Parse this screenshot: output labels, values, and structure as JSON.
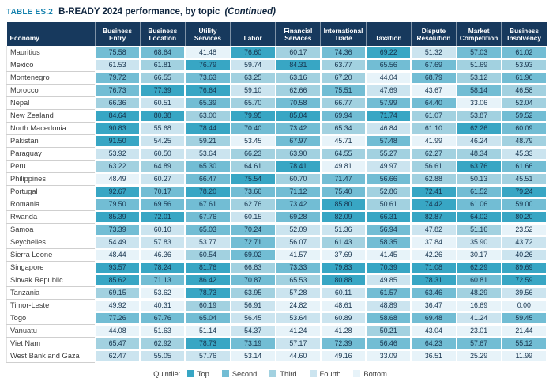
{
  "title": {
    "label": "TABLE ES.2",
    "text": "B-READY 2024 performance, by topic",
    "continued": "(Continued)"
  },
  "colors": {
    "accent": "#1581ad",
    "navytext": "#10263f",
    "headerbg": "#17395d",
    "top": "#38a6c4",
    "second": "#72bdd4",
    "third": "#a2d1e0",
    "fourth": "#cbe4ef",
    "bottom": "#e7f3f9"
  },
  "table": {
    "columns": [
      "Economy",
      "Business Entry",
      "Business Location",
      "Utility Services",
      "Labor",
      "Financial Services",
      "International Trade",
      "Taxation",
      "Dispute Resolution",
      "Market Competition",
      "Business Insolvency"
    ],
    "rows": [
      {
        "economy": "Mauritius",
        "values": [
          75.58,
          68.64,
          41.48,
          76.6,
          60.17,
          74.36,
          69.22,
          51.32,
          57.03,
          61.02
        ],
        "quintiles": [
          2,
          2,
          5,
          1,
          3,
          2,
          1,
          4,
          2,
          2
        ]
      },
      {
        "economy": "Mexico",
        "values": [
          61.53,
          61.81,
          76.79,
          59.74,
          84.31,
          63.77,
          65.56,
          67.69,
          51.69,
          53.93
        ],
        "quintiles": [
          4,
          3,
          1,
          4,
          1,
          3,
          2,
          2,
          3,
          3
        ]
      },
      {
        "economy": "Montenegro",
        "values": [
          79.72,
          66.55,
          73.63,
          63.25,
          63.16,
          67.2,
          44.04,
          68.79,
          53.12,
          61.96
        ],
        "quintiles": [
          2,
          3,
          2,
          3,
          3,
          3,
          5,
          2,
          3,
          2
        ]
      },
      {
        "economy": "Morocco",
        "values": [
          76.73,
          77.39,
          76.64,
          59.1,
          62.66,
          75.51,
          47.69,
          43.67,
          58.14,
          46.58
        ],
        "quintiles": [
          2,
          1,
          1,
          4,
          3,
          2,
          4,
          5,
          2,
          3
        ]
      },
      {
        "economy": "Nepal",
        "values": [
          66.36,
          60.51,
          65.39,
          65.7,
          70.58,
          66.77,
          57.99,
          64.4,
          33.06,
          52.04
        ],
        "quintiles": [
          3,
          4,
          2,
          3,
          2,
          3,
          2,
          2,
          5,
          3
        ]
      },
      {
        "economy": "New Zealand",
        "values": [
          84.64,
          80.38,
          63.0,
          79.95,
          85.04,
          69.94,
          71.74,
          61.07,
          53.87,
          59.52
        ],
        "quintiles": [
          1,
          1,
          3,
          1,
          1,
          2,
          1,
          3,
          3,
          2
        ]
      },
      {
        "economy": "North Macedonia",
        "values": [
          90.83,
          55.68,
          78.44,
          70.4,
          73.42,
          65.34,
          46.84,
          61.1,
          62.26,
          60.09
        ],
        "quintiles": [
          1,
          4,
          1,
          2,
          2,
          3,
          4,
          3,
          1,
          2
        ]
      },
      {
        "economy": "Pakistan",
        "values": [
          91.5,
          54.25,
          59.21,
          53.45,
          67.97,
          45.71,
          57.48,
          41.99,
          46.24,
          48.79
        ],
        "quintiles": [
          1,
          4,
          3,
          5,
          2,
          5,
          2,
          5,
          4,
          3
        ]
      },
      {
        "economy": "Paraguay",
        "values": [
          53.92,
          60.5,
          53.64,
          66.23,
          63.9,
          64.55,
          55.27,
          62.27,
          48.34,
          45.33
        ],
        "quintiles": [
          4,
          4,
          4,
          3,
          3,
          3,
          3,
          3,
          3,
          4
        ]
      },
      {
        "economy": "Peru",
        "values": [
          63.22,
          64.89,
          65.3,
          64.61,
          78.41,
          49.81,
          49.97,
          56.61,
          63.76,
          61.66
        ],
        "quintiles": [
          3,
          3,
          2,
          3,
          1,
          5,
          4,
          3,
          1,
          2
        ]
      },
      {
        "economy": "Philippines",
        "values": [
          48.49,
          60.27,
          66.47,
          75.54,
          60.7,
          71.47,
          56.66,
          62.88,
          50.13,
          45.51
        ],
        "quintiles": [
          5,
          4,
          2,
          1,
          3,
          2,
          2,
          3,
          3,
          3
        ]
      },
      {
        "economy": "Portugal",
        "values": [
          92.67,
          70.17,
          78.2,
          73.66,
          71.12,
          75.4,
          52.86,
          72.41,
          61.52,
          79.24
        ],
        "quintiles": [
          1,
          2,
          1,
          2,
          2,
          2,
          3,
          1,
          2,
          1
        ]
      },
      {
        "economy": "Romania",
        "values": [
          79.5,
          69.56,
          67.61,
          62.76,
          73.42,
          85.8,
          50.61,
          74.42,
          61.06,
          59.0
        ],
        "quintiles": [
          2,
          2,
          2,
          3,
          2,
          1,
          3,
          1,
          2,
          2
        ]
      },
      {
        "economy": "Rwanda",
        "values": [
          85.39,
          72.01,
          67.76,
          60.15,
          69.28,
          82.09,
          66.31,
          82.87,
          64.02,
          80.2
        ],
        "quintiles": [
          1,
          1,
          2,
          4,
          2,
          1,
          1,
          1,
          1,
          1
        ]
      },
      {
        "economy": "Samoa",
        "values": [
          73.39,
          60.1,
          65.03,
          70.24,
          52.09,
          51.36,
          56.94,
          47.82,
          51.16,
          23.52
        ],
        "quintiles": [
          2,
          4,
          2,
          2,
          4,
          4,
          2,
          4,
          3,
          5
        ]
      },
      {
        "economy": "Seychelles",
        "values": [
          54.49,
          57.83,
          53.77,
          72.71,
          56.07,
          61.43,
          58.35,
          37.84,
          35.9,
          43.72
        ],
        "quintiles": [
          4,
          4,
          4,
          2,
          4,
          3,
          2,
          5,
          4,
          4
        ]
      },
      {
        "economy": "Sierra Leone",
        "values": [
          48.44,
          46.36,
          60.54,
          69.02,
          41.57,
          37.69,
          41.45,
          42.26,
          30.17,
          40.26
        ],
        "quintiles": [
          5,
          5,
          3,
          2,
          5,
          5,
          5,
          5,
          5,
          4
        ]
      },
      {
        "economy": "Singapore",
        "values": [
          93.57,
          78.24,
          81.76,
          66.83,
          73.33,
          79.83,
          70.39,
          71.08,
          62.29,
          89.69
        ],
        "quintiles": [
          1,
          1,
          1,
          3,
          2,
          1,
          1,
          1,
          1,
          1
        ]
      },
      {
        "economy": "Slovak Republic",
        "values": [
          85.62,
          71.13,
          86.42,
          70.87,
          65.53,
          80.88,
          49.85,
          78.31,
          60.81,
          72.59
        ],
        "quintiles": [
          1,
          2,
          1,
          2,
          3,
          1,
          4,
          1,
          2,
          1
        ]
      },
      {
        "economy": "Tanzania",
        "values": [
          69.15,
          53.62,
          78.73,
          63.95,
          57.28,
          60.11,
          61.57,
          63.46,
          48.29,
          39.56
        ],
        "quintiles": [
          3,
          5,
          1,
          3,
          4,
          4,
          2,
          2,
          3,
          4
        ]
      },
      {
        "economy": "Timor-Leste",
        "values": [
          49.92,
          40.31,
          60.19,
          56.91,
          24.82,
          48.61,
          48.89,
          36.47,
          16.69,
          0.0
        ],
        "quintiles": [
          5,
          5,
          3,
          4,
          5,
          5,
          4,
          5,
          5,
          5
        ]
      },
      {
        "economy": "Togo",
        "values": [
          77.26,
          67.76,
          65.04,
          56.45,
          53.64,
          60.89,
          58.68,
          69.48,
          41.24,
          59.45
        ],
        "quintiles": [
          2,
          2,
          2,
          4,
          4,
          4,
          2,
          2,
          4,
          2
        ]
      },
      {
        "economy": "Vanuatu",
        "values": [
          44.08,
          51.63,
          51.14,
          54.37,
          41.24,
          41.28,
          50.21,
          43.04,
          23.01,
          21.44
        ],
        "quintiles": [
          5,
          5,
          5,
          4,
          5,
          5,
          3,
          5,
          5,
          5
        ]
      },
      {
        "economy": "Viet Nam",
        "values": [
          65.47,
          62.92,
          78.73,
          73.19,
          57.17,
          72.39,
          56.46,
          64.23,
          57.67,
          55.12
        ],
        "quintiles": [
          3,
          3,
          1,
          2,
          4,
          2,
          2,
          2,
          2,
          2
        ]
      },
      {
        "economy": "West Bank and Gaza",
        "values": [
          62.47,
          55.05,
          57.76,
          53.14,
          44.6,
          49.16,
          33.09,
          36.51,
          25.29,
          11.99
        ],
        "quintiles": [
          4,
          4,
          4,
          5,
          5,
          5,
          5,
          5,
          5,
          5
        ]
      }
    ]
  },
  "legend": {
    "label": "Quintile:",
    "items": [
      {
        "label": "Top",
        "quintile": 1
      },
      {
        "label": "Second",
        "quintile": 2
      },
      {
        "label": "Third",
        "quintile": 3
      },
      {
        "label": "Fourth",
        "quintile": 4
      },
      {
        "label": "Bottom",
        "quintile": 5
      }
    ]
  }
}
